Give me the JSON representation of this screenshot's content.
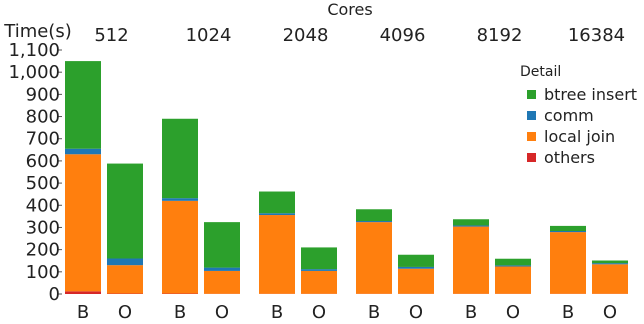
{
  "chart_data": {
    "type": "bar",
    "stacked": true,
    "facet_label": "Cores",
    "ylabel": "Time(s)",
    "ylim": [
      0,
      1100
    ],
    "yticks": [
      0,
      100,
      200,
      300,
      400,
      500,
      600,
      700,
      800,
      900,
      1000,
      1100
    ],
    "ytick_labels": [
      "0",
      "100",
      "200",
      "300",
      "400",
      "500",
      "600",
      "700",
      "800",
      "900",
      "1,000",
      "1,100"
    ],
    "groups": [
      "512",
      "1024",
      "2048",
      "4096",
      "8192",
      "16384"
    ],
    "categories": [
      "B",
      "O"
    ],
    "legend_title": "Detail",
    "legend_position": "right",
    "grid": false,
    "series": [
      {
        "name": "others",
        "color": "#d62728",
        "values": [
          [
            12,
            2
          ],
          [
            2,
            1
          ],
          [
            1,
            1
          ],
          [
            1,
            1
          ],
          [
            1,
            1
          ],
          [
            1,
            1
          ]
        ]
      },
      {
        "name": "local join",
        "color": "#ff7f0e",
        "values": [
          [
            618,
            128
          ],
          [
            418,
            103
          ],
          [
            355,
            103
          ],
          [
            323,
            113
          ],
          [
            303,
            123
          ],
          [
            278,
            133
          ]
        ]
      },
      {
        "name": "comm",
        "color": "#1f77b4",
        "values": [
          [
            25,
            30
          ],
          [
            12,
            15
          ],
          [
            8,
            8
          ],
          [
            5,
            8
          ],
          [
            5,
            5
          ],
          [
            5,
            5
          ]
        ]
      },
      {
        "name": "btree insert",
        "color": "#2ca02c",
        "values": [
          [
            395,
            428
          ],
          [
            358,
            205
          ],
          [
            98,
            98
          ],
          [
            53,
            55
          ],
          [
            28,
            30
          ],
          [
            23,
            12
          ]
        ]
      }
    ],
    "legend_order": [
      "btree insert",
      "comm",
      "local join",
      "others"
    ]
  }
}
